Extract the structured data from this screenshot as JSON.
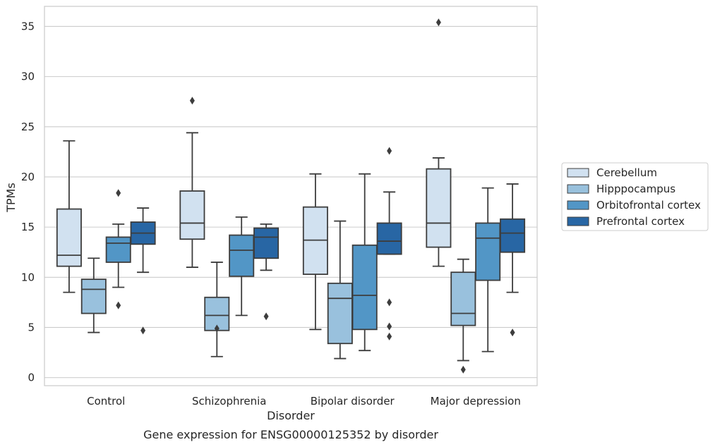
{
  "chart_data": {
    "type": "box",
    "title": "",
    "caption": "Gene expression for ENSG00000125352 by disorder",
    "xlabel": "Disorder",
    "ylabel": "TPMs",
    "ylim": [
      -0.8,
      37.0
    ],
    "yticks": [
      0,
      5,
      10,
      15,
      20,
      25,
      30,
      35
    ],
    "grid": "horizontal",
    "legend_position": "right",
    "categories": [
      "Control",
      "Schizophrenia",
      "Bipolar disorder",
      "Major depression"
    ],
    "series": [
      {
        "name": "Cerebellum",
        "color": "#d1e1f0",
        "boxes": [
          {
            "whislo": 8.5,
            "q1": 11.1,
            "med": 12.2,
            "q3": 16.8,
            "whishi": 23.6,
            "fliers": []
          },
          {
            "whislo": 11.0,
            "q1": 13.8,
            "med": 15.4,
            "q3": 18.6,
            "whishi": 24.4,
            "fliers": [
              27.6
            ]
          },
          {
            "whislo": 4.8,
            "q1": 10.3,
            "med": 13.7,
            "q3": 17.0,
            "whishi": 20.3,
            "fliers": []
          },
          {
            "whislo": 11.1,
            "q1": 13.0,
            "med": 15.4,
            "q3": 20.8,
            "whishi": 21.9,
            "fliers": [
              35.4
            ]
          }
        ]
      },
      {
        "name": "Hipppocampus",
        "color": "#99c1dd",
        "boxes": [
          {
            "whislo": 4.5,
            "q1": 6.4,
            "med": 8.8,
            "q3": 9.8,
            "whishi": 11.9,
            "fliers": []
          },
          {
            "whislo": 2.1,
            "q1": 4.7,
            "med": 6.2,
            "q3": 8.0,
            "whishi": 11.5,
            "fliers": [
              4.9
            ]
          },
          {
            "whislo": 1.9,
            "q1": 3.4,
            "med": 7.9,
            "q3": 9.4,
            "whishi": 15.6,
            "fliers": []
          },
          {
            "whislo": 1.7,
            "q1": 5.2,
            "med": 6.4,
            "q3": 10.5,
            "whishi": 11.8,
            "fliers": [
              0.8
            ]
          }
        ]
      },
      {
        "name": "Orbitofrontal cortex",
        "color": "#5296c6",
        "boxes": [
          {
            "whislo": 9.0,
            "q1": 11.5,
            "med": 13.4,
            "q3": 14.0,
            "whishi": 15.3,
            "fliers": [
              7.2,
              18.4
            ]
          },
          {
            "whislo": 6.2,
            "q1": 10.1,
            "med": 12.7,
            "q3": 14.2,
            "whishi": 16.0,
            "fliers": []
          },
          {
            "whislo": 2.7,
            "q1": 4.8,
            "med": 8.2,
            "q3": 13.2,
            "whishi": 20.3,
            "fliers": []
          },
          {
            "whislo": 2.6,
            "q1": 9.7,
            "med": 13.9,
            "q3": 15.4,
            "whishi": 18.9,
            "fliers": []
          }
        ]
      },
      {
        "name": "Prefrontal cortex",
        "color": "#2866a4",
        "boxes": [
          {
            "whislo": 10.5,
            "q1": 13.3,
            "med": 14.4,
            "q3": 15.5,
            "whishi": 16.9,
            "fliers": [
              4.7
            ]
          },
          {
            "whislo": 10.7,
            "q1": 11.9,
            "med": 14.0,
            "q3": 14.9,
            "whishi": 15.3,
            "fliers": [
              6.1
            ]
          },
          {
            "whislo": 12.3,
            "q1": 12.3,
            "med": 13.6,
            "q3": 15.4,
            "whishi": 18.5,
            "fliers": [
              4.1,
              5.1,
              7.5,
              22.6
            ]
          },
          {
            "whislo": 8.5,
            "q1": 12.5,
            "med": 14.4,
            "q3": 15.8,
            "whishi": 19.3,
            "fliers": [
              4.5
            ]
          }
        ]
      }
    ]
  }
}
